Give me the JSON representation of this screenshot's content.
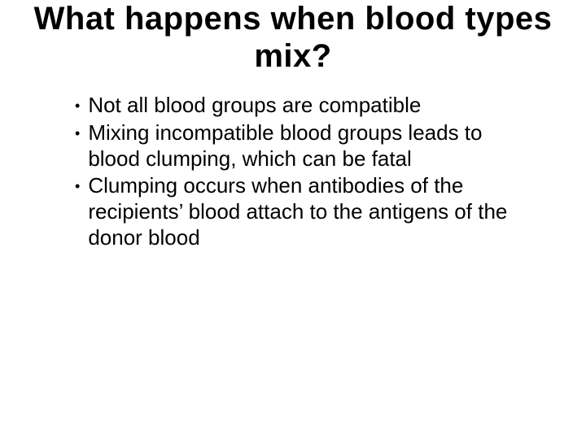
{
  "slide": {
    "title": "What happens when blood types mix?",
    "title_fontsize": 40,
    "title_fontweight": "bold",
    "title_align": "center",
    "bullets": [
      "Not all blood groups are compatible",
      "Mixing incompatible blood groups leads to blood clumping, which can be fatal",
      "Clumping occurs when antibodies of the recipients’ blood attach to the antigens of the donor blood"
    ],
    "bullet_fontsize": 26,
    "bullet_marker": "•",
    "background_color": "#ffffff",
    "text_color": "#000000",
    "font_family": "Arial"
  }
}
